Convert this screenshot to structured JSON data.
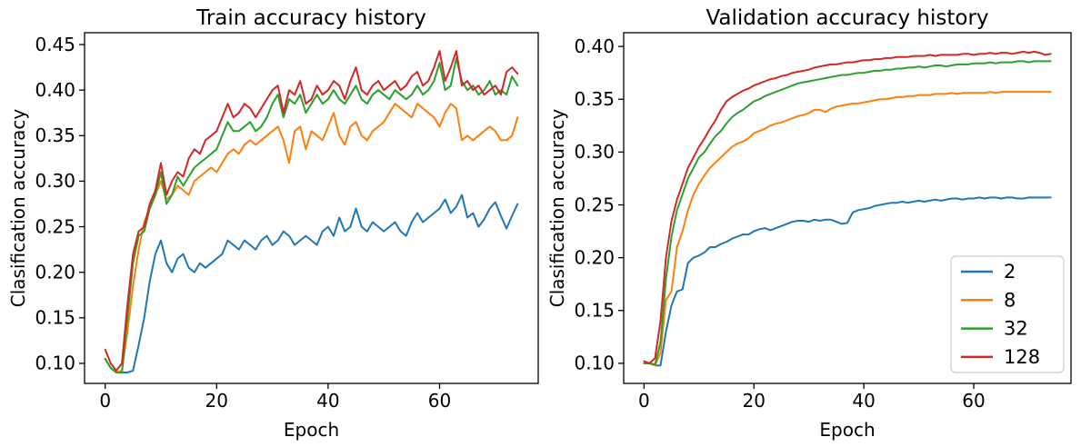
{
  "figure": {
    "background": "#ffffff",
    "text_color": "#000000",
    "spine_color": "#000000",
    "legend_border_color": "#cccccc"
  },
  "chart_data": [
    {
      "id": "train",
      "type": "line",
      "title": "Train accuracy history",
      "xlabel": "Epoch",
      "ylabel": "Clasification accuracy",
      "xlim": [
        -3.7,
        77.7
      ],
      "ylim": [
        0.078,
        0.463
      ],
      "xticks": [
        0,
        20,
        40,
        60
      ],
      "yticks": [
        0.1,
        0.15,
        0.2,
        0.25,
        0.3,
        0.35,
        0.4,
        0.45
      ],
      "grid": false,
      "legend": null,
      "x_start": 0,
      "x_step": 1,
      "series": [
        {
          "name": "2",
          "color": "#1f77b4",
          "values": [
            0.105,
            0.095,
            0.09,
            0.09,
            0.09,
            0.092,
            0.12,
            0.15,
            0.19,
            0.22,
            0.235,
            0.21,
            0.2,
            0.215,
            0.22,
            0.205,
            0.2,
            0.21,
            0.205,
            0.21,
            0.215,
            0.22,
            0.235,
            0.23,
            0.225,
            0.235,
            0.23,
            0.225,
            0.235,
            0.24,
            0.23,
            0.235,
            0.245,
            0.24,
            0.23,
            0.235,
            0.24,
            0.235,
            0.23,
            0.245,
            0.25,
            0.24,
            0.26,
            0.245,
            0.25,
            0.27,
            0.25,
            0.245,
            0.255,
            0.25,
            0.245,
            0.25,
            0.255,
            0.245,
            0.24,
            0.255,
            0.265,
            0.255,
            0.26,
            0.265,
            0.27,
            0.28,
            0.265,
            0.272,
            0.285,
            0.26,
            0.265,
            0.25,
            0.258,
            0.27,
            0.277,
            0.262,
            0.248,
            0.262,
            0.275
          ]
        },
        {
          "name": "8",
          "color": "#ff7f0e",
          "values": [
            0.105,
            0.095,
            0.09,
            0.092,
            0.135,
            0.185,
            0.225,
            0.255,
            0.27,
            0.285,
            0.3,
            0.28,
            0.285,
            0.295,
            0.29,
            0.285,
            0.3,
            0.305,
            0.31,
            0.315,
            0.31,
            0.32,
            0.33,
            0.335,
            0.33,
            0.34,
            0.345,
            0.34,
            0.345,
            0.35,
            0.355,
            0.36,
            0.345,
            0.32,
            0.355,
            0.36,
            0.335,
            0.355,
            0.35,
            0.345,
            0.36,
            0.375,
            0.35,
            0.34,
            0.36,
            0.365,
            0.35,
            0.345,
            0.355,
            0.36,
            0.365,
            0.375,
            0.385,
            0.38,
            0.375,
            0.37,
            0.385,
            0.38,
            0.375,
            0.37,
            0.36,
            0.375,
            0.385,
            0.38,
            0.345,
            0.35,
            0.345,
            0.35,
            0.355,
            0.36,
            0.355,
            0.345,
            0.345,
            0.35,
            0.37
          ]
        },
        {
          "name": "32",
          "color": "#2ca02c",
          "values": [
            0.105,
            0.095,
            0.09,
            0.09,
            0.15,
            0.21,
            0.24,
            0.245,
            0.27,
            0.285,
            0.31,
            0.275,
            0.285,
            0.305,
            0.295,
            0.305,
            0.315,
            0.32,
            0.325,
            0.33,
            0.335,
            0.35,
            0.365,
            0.355,
            0.355,
            0.36,
            0.365,
            0.355,
            0.36,
            0.37,
            0.385,
            0.395,
            0.37,
            0.39,
            0.385,
            0.395,
            0.375,
            0.385,
            0.395,
            0.385,
            0.39,
            0.4,
            0.39,
            0.385,
            0.395,
            0.405,
            0.39,
            0.385,
            0.395,
            0.4,
            0.395,
            0.39,
            0.4,
            0.395,
            0.39,
            0.395,
            0.405,
            0.395,
            0.4,
            0.41,
            0.43,
            0.4,
            0.405,
            0.435,
            0.41,
            0.4,
            0.405,
            0.395,
            0.4,
            0.41,
            0.395,
            0.4,
            0.395,
            0.415,
            0.405
          ]
        },
        {
          "name": "128",
          "color": "#d62728",
          "values": [
            0.115,
            0.1,
            0.092,
            0.1,
            0.165,
            0.22,
            0.245,
            0.25,
            0.275,
            0.29,
            0.32,
            0.285,
            0.3,
            0.31,
            0.305,
            0.325,
            0.335,
            0.33,
            0.345,
            0.35,
            0.355,
            0.37,
            0.385,
            0.37,
            0.375,
            0.385,
            0.38,
            0.37,
            0.38,
            0.39,
            0.4,
            0.405,
            0.375,
            0.4,
            0.395,
            0.41,
            0.385,
            0.39,
            0.405,
            0.395,
            0.4,
            0.41,
            0.405,
            0.39,
            0.41,
            0.425,
            0.4,
            0.395,
            0.405,
            0.41,
            0.4,
            0.405,
            0.41,
            0.4,
            0.405,
            0.415,
            0.42,
            0.405,
            0.41,
            0.425,
            0.443,
            0.41,
            0.425,
            0.443,
            0.405,
            0.41,
            0.4,
            0.405,
            0.395,
            0.4,
            0.405,
            0.395,
            0.42,
            0.425,
            0.418
          ]
        }
      ]
    },
    {
      "id": "validation",
      "type": "line",
      "title": "Validation accuracy history",
      "xlabel": "Epoch",
      "ylabel": "Clasification accuracy",
      "xlim": [
        -3.7,
        77.7
      ],
      "ylim": [
        0.081,
        0.413
      ],
      "xticks": [
        0,
        20,
        40,
        60
      ],
      "yticks": [
        0.1,
        0.15,
        0.2,
        0.25,
        0.3,
        0.35,
        0.4
      ],
      "grid": false,
      "legend": {
        "position": "lower right",
        "entries": [
          "2",
          "8",
          "32",
          "128"
        ]
      },
      "x_start": 0,
      "x_step": 1,
      "series": [
        {
          "name": "2",
          "color": "#1f77b4",
          "values": [
            0.1,
            0.1,
            0.098,
            0.098,
            0.13,
            0.155,
            0.168,
            0.17,
            0.195,
            0.2,
            0.202,
            0.205,
            0.21,
            0.21,
            0.213,
            0.215,
            0.218,
            0.22,
            0.222,
            0.222,
            0.225,
            0.227,
            0.228,
            0.226,
            0.228,
            0.23,
            0.232,
            0.234,
            0.235,
            0.235,
            0.234,
            0.236,
            0.235,
            0.236,
            0.236,
            0.234,
            0.232,
            0.233,
            0.243,
            0.245,
            0.246,
            0.247,
            0.249,
            0.25,
            0.251,
            0.252,
            0.252,
            0.253,
            0.252,
            0.253,
            0.254,
            0.253,
            0.254,
            0.255,
            0.254,
            0.255,
            0.256,
            0.256,
            0.255,
            0.256,
            0.256,
            0.257,
            0.256,
            0.257,
            0.257,
            0.256,
            0.257,
            0.257,
            0.256,
            0.256,
            0.257,
            0.257,
            0.257,
            0.257,
            0.257
          ]
        },
        {
          "name": "8",
          "color": "#ff7f0e",
          "values": [
            0.1,
            0.1,
            0.098,
            0.11,
            0.16,
            0.168,
            0.21,
            0.225,
            0.245,
            0.26,
            0.27,
            0.278,
            0.285,
            0.29,
            0.295,
            0.3,
            0.305,
            0.308,
            0.31,
            0.313,
            0.318,
            0.32,
            0.322,
            0.325,
            0.327,
            0.328,
            0.33,
            0.332,
            0.334,
            0.335,
            0.337,
            0.34,
            0.34,
            0.338,
            0.341,
            0.343,
            0.344,
            0.345,
            0.346,
            0.346,
            0.347,
            0.348,
            0.349,
            0.35,
            0.35,
            0.351,
            0.352,
            0.352,
            0.353,
            0.353,
            0.354,
            0.354,
            0.354,
            0.355,
            0.355,
            0.355,
            0.356,
            0.355,
            0.356,
            0.356,
            0.356,
            0.356,
            0.356,
            0.357,
            0.356,
            0.357,
            0.357,
            0.357,
            0.357,
            0.357,
            0.357,
            0.357,
            0.357,
            0.357,
            0.357
          ]
        },
        {
          "name": "32",
          "color": "#2ca02c",
          "values": [
            0.1,
            0.1,
            0.099,
            0.12,
            0.18,
            0.22,
            0.245,
            0.26,
            0.275,
            0.285,
            0.295,
            0.3,
            0.308,
            0.315,
            0.32,
            0.327,
            0.333,
            0.337,
            0.34,
            0.344,
            0.348,
            0.35,
            0.353,
            0.355,
            0.357,
            0.359,
            0.361,
            0.363,
            0.365,
            0.366,
            0.367,
            0.368,
            0.369,
            0.37,
            0.371,
            0.372,
            0.373,
            0.373,
            0.374,
            0.375,
            0.375,
            0.376,
            0.377,
            0.377,
            0.378,
            0.378,
            0.379,
            0.379,
            0.38,
            0.38,
            0.381,
            0.38,
            0.381,
            0.382,
            0.382,
            0.381,
            0.382,
            0.383,
            0.383,
            0.383,
            0.384,
            0.384,
            0.384,
            0.385,
            0.384,
            0.385,
            0.385,
            0.385,
            0.386,
            0.386,
            0.385,
            0.386,
            0.386,
            0.386,
            0.386
          ]
        },
        {
          "name": "128",
          "color": "#d62728",
          "values": [
            0.102,
            0.1,
            0.105,
            0.14,
            0.2,
            0.235,
            0.255,
            0.27,
            0.285,
            0.295,
            0.305,
            0.313,
            0.322,
            0.33,
            0.34,
            0.348,
            0.352,
            0.355,
            0.358,
            0.36,
            0.363,
            0.365,
            0.367,
            0.369,
            0.37,
            0.372,
            0.373,
            0.375,
            0.376,
            0.377,
            0.378,
            0.38,
            0.381,
            0.382,
            0.383,
            0.383,
            0.384,
            0.385,
            0.385,
            0.386,
            0.387,
            0.387,
            0.388,
            0.388,
            0.389,
            0.389,
            0.39,
            0.39,
            0.39,
            0.391,
            0.391,
            0.391,
            0.392,
            0.391,
            0.392,
            0.392,
            0.392,
            0.392,
            0.393,
            0.393,
            0.392,
            0.393,
            0.393,
            0.394,
            0.393,
            0.394,
            0.394,
            0.393,
            0.394,
            0.395,
            0.394,
            0.395,
            0.394,
            0.392,
            0.393
          ]
        }
      ]
    }
  ]
}
